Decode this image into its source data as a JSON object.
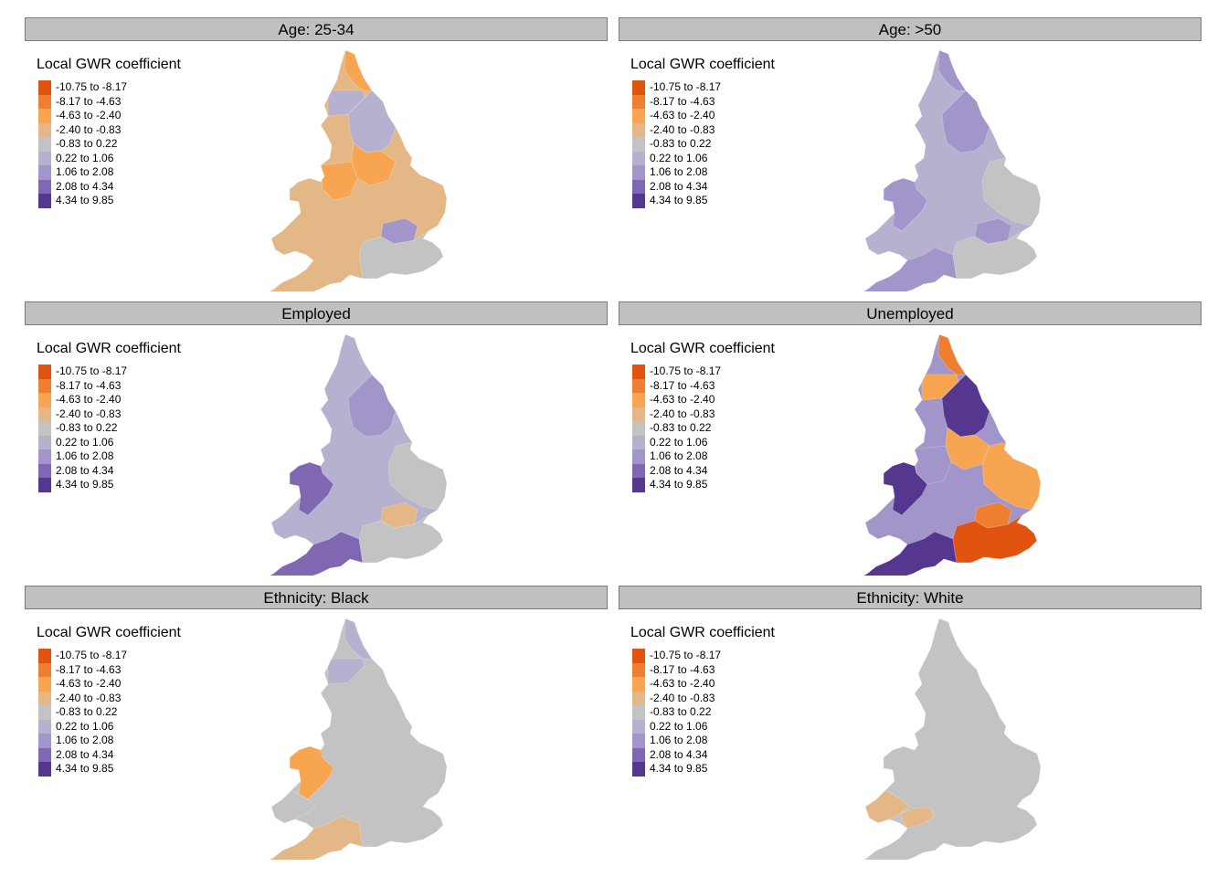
{
  "legend": {
    "title": "Local GWR coefficient",
    "classes": [
      {
        "label": "-10.75 to -8.17",
        "color": "#e1540f"
      },
      {
        "label": "-8.17 to -4.63",
        "color": "#ee7e30"
      },
      {
        "label": "-4.63 to -2.40",
        "color": "#f8a552"
      },
      {
        "label": "-2.40 to -0.83",
        "color": "#e4b886"
      },
      {
        "label": "-0.83 to 0.22",
        "color": "#c3c3c3"
      },
      {
        "label": "0.22 to 1.06",
        "color": "#b5b1cf"
      },
      {
        "label": "1.06 to 2.08",
        "color": "#a195ca"
      },
      {
        "label": "2.08 to 4.34",
        "color": "#7f67b1"
      },
      {
        "label": "4.34 to 9.85",
        "color": "#55378f"
      }
    ]
  },
  "panels": [
    {
      "title": "Age: 25-34",
      "base": 3,
      "regions": [
        [
          "north",
          5
        ],
        [
          "northeast",
          2
        ],
        [
          "yorkshire",
          5
        ],
        [
          "eastmid",
          2
        ],
        [
          "westmid",
          2
        ],
        [
          "london",
          6
        ],
        [
          "southeast",
          4
        ]
      ]
    },
    {
      "title": "Age: >50",
      "base": 5,
      "regions": [
        [
          "northeast",
          6
        ],
        [
          "yorkshire",
          6
        ],
        [
          "wales",
          6
        ],
        [
          "southwest",
          6
        ],
        [
          "east",
          4
        ],
        [
          "southeast",
          4
        ],
        [
          "london",
          6
        ]
      ]
    },
    {
      "title": "Employed",
      "base": 5,
      "regions": [
        [
          "wales",
          7
        ],
        [
          "southwest",
          7
        ],
        [
          "yorkshire",
          6
        ],
        [
          "london",
          3
        ],
        [
          "east",
          4
        ],
        [
          "southeast",
          4
        ]
      ]
    },
    {
      "title": "Unemployed",
      "base": 6,
      "regions": [
        [
          "north",
          2
        ],
        [
          "northeast",
          1
        ],
        [
          "yorkshire",
          8
        ],
        [
          "wales",
          8
        ],
        [
          "southwest",
          8
        ],
        [
          "westmid",
          6
        ],
        [
          "eastmid",
          2
        ],
        [
          "east",
          2
        ],
        [
          "london",
          1
        ],
        [
          "southeast",
          0
        ]
      ]
    },
    {
      "title": "Ethnicity: Black",
      "base": 4,
      "regions": [
        [
          "north",
          5
        ],
        [
          "northeast",
          5
        ],
        [
          "wales",
          2
        ],
        [
          "southwest",
          3
        ],
        [
          "wales_south",
          4
        ]
      ]
    },
    {
      "title": "Ethnicity: White",
      "base": 4,
      "regions": [
        [
          "wales_south",
          3
        ],
        [
          "severn",
          3
        ]
      ]
    }
  ]
}
